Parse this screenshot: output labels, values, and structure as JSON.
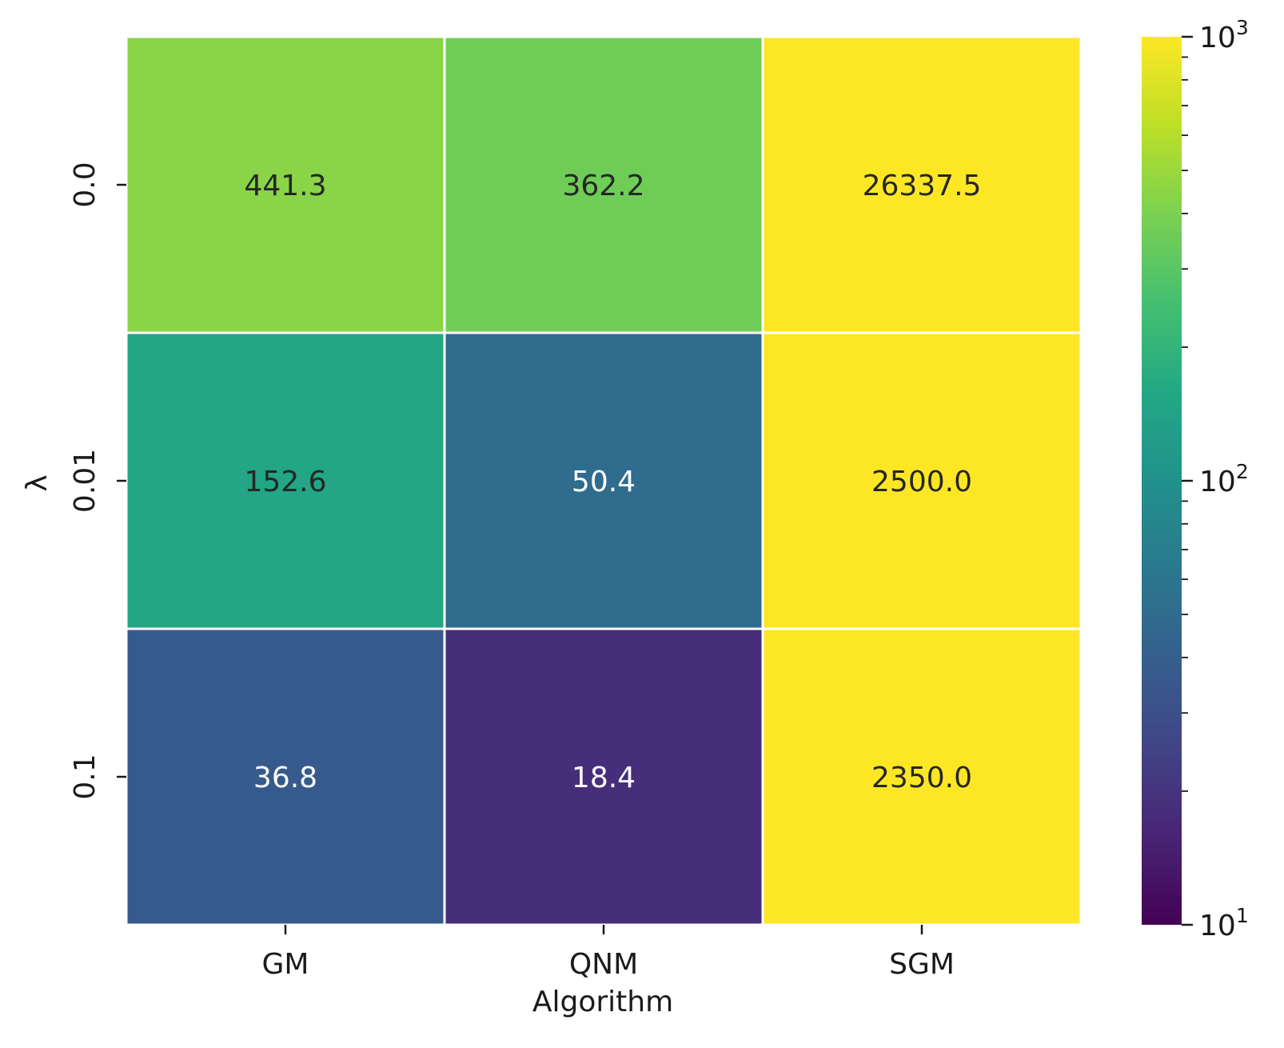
{
  "chart_data": {
    "type": "heatmap",
    "title": "",
    "xlabel": "Algorithm",
    "ylabel": "λ",
    "x_categories": [
      "GM",
      "QNM",
      "SGM"
    ],
    "y_categories": [
      "0.0",
      "0.01",
      "0.1"
    ],
    "values": [
      [
        441.3,
        362.2,
        26337.5
      ],
      [
        152.6,
        50.4,
        2500.0
      ],
      [
        36.8,
        18.4,
        2350.0
      ]
    ],
    "value_labels": [
      [
        "441.3",
        "362.2",
        "26337.5"
      ],
      [
        "152.6",
        "50.4",
        "2500.0"
      ],
      [
        "36.8",
        "18.4",
        "2350.0"
      ]
    ],
    "colormap": "viridis",
    "color_scale": "log",
    "color_range": [
      10,
      1000
    ],
    "colorbar_ticks": [
      {
        "base": "10",
        "exp": "1",
        "value": 10
      },
      {
        "base": "10",
        "exp": "2",
        "value": 100
      },
      {
        "base": "10",
        "exp": "3",
        "value": 1000
      }
    ],
    "grid": false,
    "cell_border_color": "#ffffff",
    "text_color_dark": "#262626",
    "text_color_light": "#ffffff"
  }
}
